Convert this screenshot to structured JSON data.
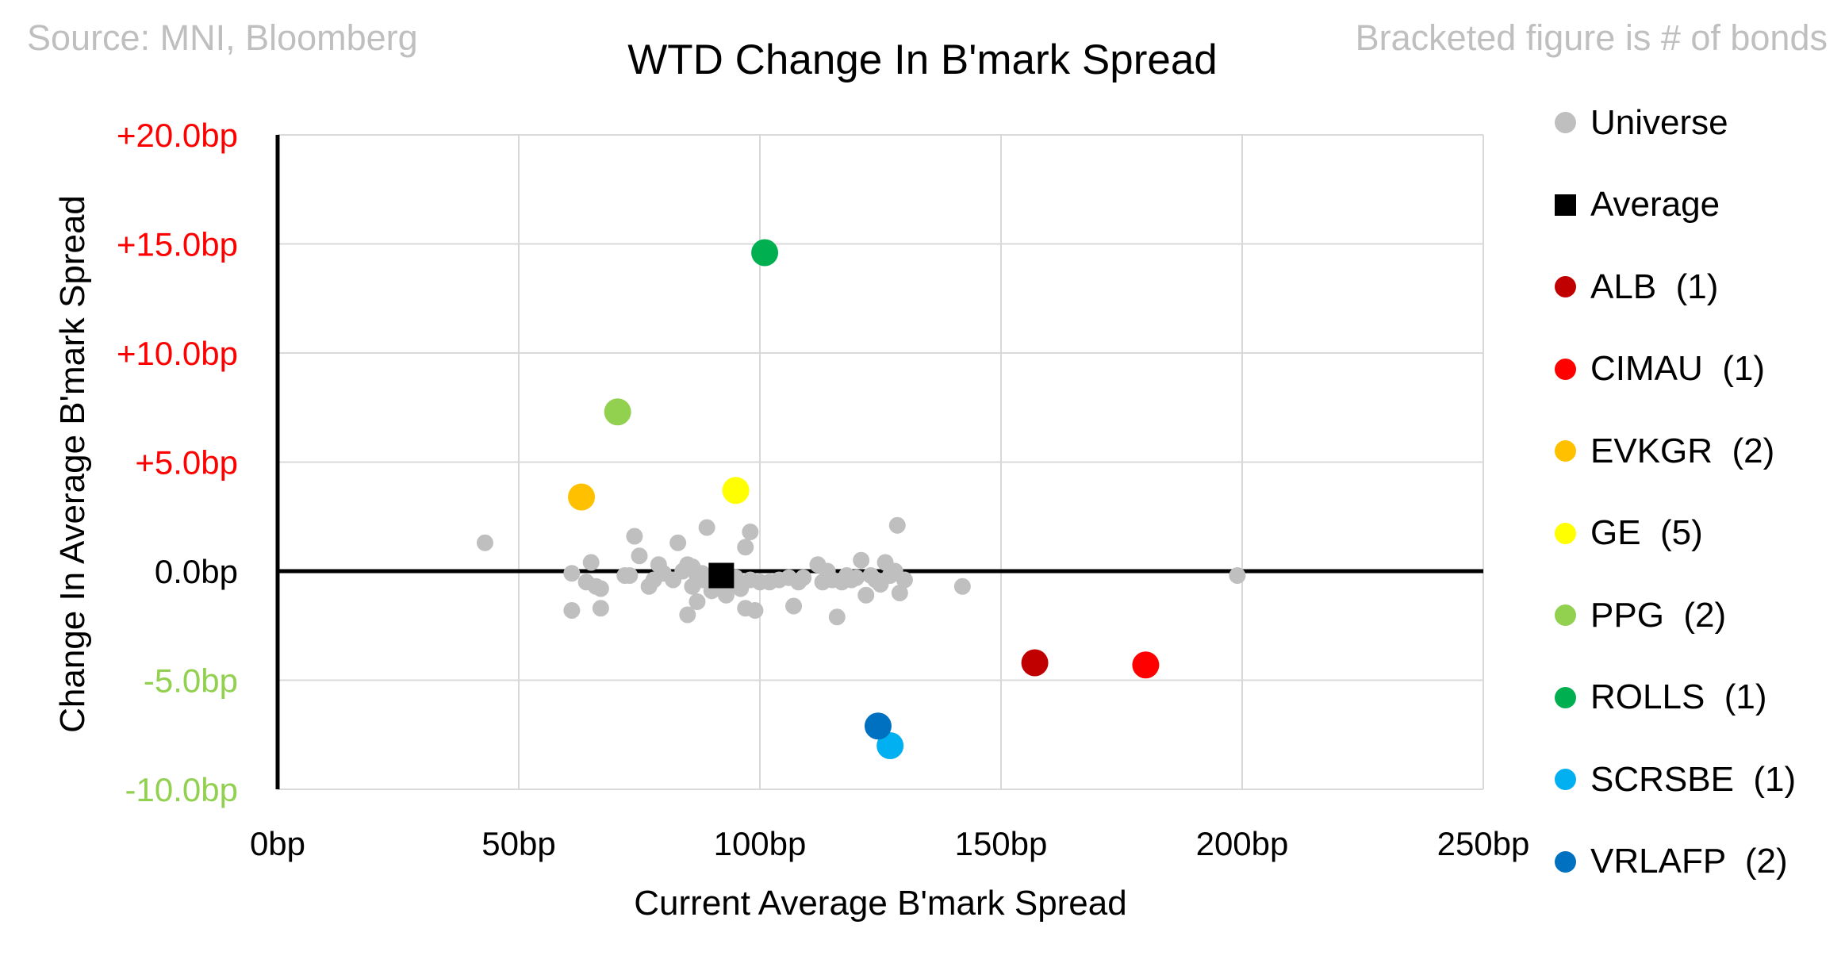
{
  "header": {
    "source": "Source: MNI, Bloomberg",
    "note": "Bracketed figure is # of bonds"
  },
  "chart_data": {
    "type": "scatter",
    "title": "WTD Change In B'mark Spread",
    "xlabel": "Current Average B'mark Spread",
    "ylabel": "Change In Average B'mark Spread",
    "xlim": [
      0,
      250
    ],
    "ylim": [
      -10,
      20
    ],
    "x_ticks": [
      {
        "value": 0,
        "label": "0bp"
      },
      {
        "value": 50,
        "label": "50bp"
      },
      {
        "value": 100,
        "label": "100bp"
      },
      {
        "value": 150,
        "label": "150bp"
      },
      {
        "value": 200,
        "label": "200bp"
      },
      {
        "value": 250,
        "label": "250bp"
      }
    ],
    "y_ticks": [
      {
        "value": 20,
        "label": "+20.0bp",
        "color": "#ff0000"
      },
      {
        "value": 15,
        "label": "+15.0bp",
        "color": "#ff0000"
      },
      {
        "value": 10,
        "label": "+10.0bp",
        "color": "#ff0000"
      },
      {
        "value": 5,
        "label": "+5.0bp",
        "color": "#ff0000"
      },
      {
        "value": 0,
        "label": "0.0bp",
        "color": "#000000"
      },
      {
        "value": -5,
        "label": "-5.0bp",
        "color": "#92d050"
      },
      {
        "value": -10,
        "label": "-10.0bp",
        "color": "#92d050"
      }
    ],
    "grid": true,
    "legend_position": "right",
    "series": [
      {
        "name": "Universe",
        "label": "Universe",
        "color": "#bfbfbf",
        "marker": "circle",
        "size": "small",
        "points": [
          [
            43,
            1.3
          ],
          [
            61,
            -0.1
          ],
          [
            61,
            -1.8
          ],
          [
            64,
            -0.5
          ],
          [
            65,
            0.4
          ],
          [
            66,
            -0.7
          ],
          [
            67,
            -0.8
          ],
          [
            67,
            -1.7
          ],
          [
            72,
            -0.2
          ],
          [
            73,
            -0.2
          ],
          [
            74,
            1.6
          ],
          [
            75,
            0.7
          ],
          [
            77,
            -0.7
          ],
          [
            78,
            -0.4
          ],
          [
            79,
            0.3
          ],
          [
            80,
            -0.1
          ],
          [
            82,
            -0.4
          ],
          [
            83,
            1.3
          ],
          [
            84,
            0.0
          ],
          [
            85,
            -2.0
          ],
          [
            85,
            0.3
          ],
          [
            86,
            0.2
          ],
          [
            86,
            -0.7
          ],
          [
            87,
            -0.2
          ],
          [
            87,
            -1.4
          ],
          [
            88,
            -0.1
          ],
          [
            88,
            -0.4
          ],
          [
            89,
            2.0
          ],
          [
            90,
            -0.9
          ],
          [
            91,
            -0.5
          ],
          [
            92,
            -0.3
          ],
          [
            93,
            -1.1
          ],
          [
            94,
            -0.5
          ],
          [
            95,
            -0.3
          ],
          [
            96,
            -0.8
          ],
          [
            97,
            1.1
          ],
          [
            97,
            -1.7
          ],
          [
            98,
            1.8
          ],
          [
            98,
            -0.4
          ],
          [
            99,
            -1.8
          ],
          [
            100,
            -0.5
          ],
          [
            102,
            -0.5
          ],
          [
            104,
            -0.4
          ],
          [
            106,
            -0.3
          ],
          [
            107,
            -1.6
          ],
          [
            108,
            -0.5
          ],
          [
            109,
            -0.3
          ],
          [
            112,
            0.3
          ],
          [
            113,
            -0.5
          ],
          [
            114,
            0.0
          ],
          [
            115,
            -0.4
          ],
          [
            116,
            -2.1
          ],
          [
            117,
            -0.5
          ],
          [
            118,
            -0.2
          ],
          [
            119,
            -0.4
          ],
          [
            120,
            -0.3
          ],
          [
            121,
            0.5
          ],
          [
            122,
            -1.1
          ],
          [
            123,
            -0.2
          ],
          [
            124,
            -0.4
          ],
          [
            125,
            -0.6
          ],
          [
            126,
            0.4
          ],
          [
            127,
            -0.2
          ],
          [
            128,
            0.0
          ],
          [
            129,
            -1.0
          ],
          [
            130,
            -0.4
          ],
          [
            128.5,
            2.1
          ],
          [
            142,
            -0.7
          ],
          [
            199,
            -0.2
          ]
        ]
      },
      {
        "name": "Average",
        "label": "Average",
        "color": "#000000",
        "marker": "square",
        "size": "large",
        "points": [
          [
            92,
            -0.2
          ]
        ]
      },
      {
        "name": "ALB",
        "label": "ALB  (1)",
        "color": "#c00000",
        "marker": "circle",
        "size": "large",
        "points": [
          [
            157,
            -4.2
          ]
        ]
      },
      {
        "name": "CIMAU",
        "label": "CIMAU  (1)",
        "color": "#ff0000",
        "marker": "circle",
        "size": "large",
        "points": [
          [
            180,
            -4.3
          ]
        ]
      },
      {
        "name": "EVKGR",
        "label": "EVKGR  (2)",
        "color": "#ffc000",
        "marker": "circle",
        "size": "large",
        "points": [
          [
            63,
            3.4
          ]
        ]
      },
      {
        "name": "GE",
        "label": "GE  (5)",
        "color": "#ffff00",
        "marker": "circle",
        "size": "large",
        "points": [
          [
            95,
            3.7
          ]
        ]
      },
      {
        "name": "PPG",
        "label": "PPG  (2)",
        "color": "#92d050",
        "marker": "circle",
        "size": "large",
        "points": [
          [
            70.5,
            7.3
          ]
        ]
      },
      {
        "name": "ROLLS",
        "label": "ROLLS  (1)",
        "color": "#00b050",
        "marker": "circle",
        "size": "large",
        "points": [
          [
            101,
            14.6
          ]
        ]
      },
      {
        "name": "SCRSBE",
        "label": "SCRSBE  (1)",
        "color": "#00b0f0",
        "marker": "circle",
        "size": "large",
        "points": [
          [
            127,
            -8.0
          ]
        ]
      },
      {
        "name": "VRLAFP",
        "label": "VRLAFP  (2)",
        "color": "#0070c0",
        "marker": "circle",
        "size": "large",
        "points": [
          [
            124.5,
            -7.1
          ]
        ]
      }
    ]
  }
}
